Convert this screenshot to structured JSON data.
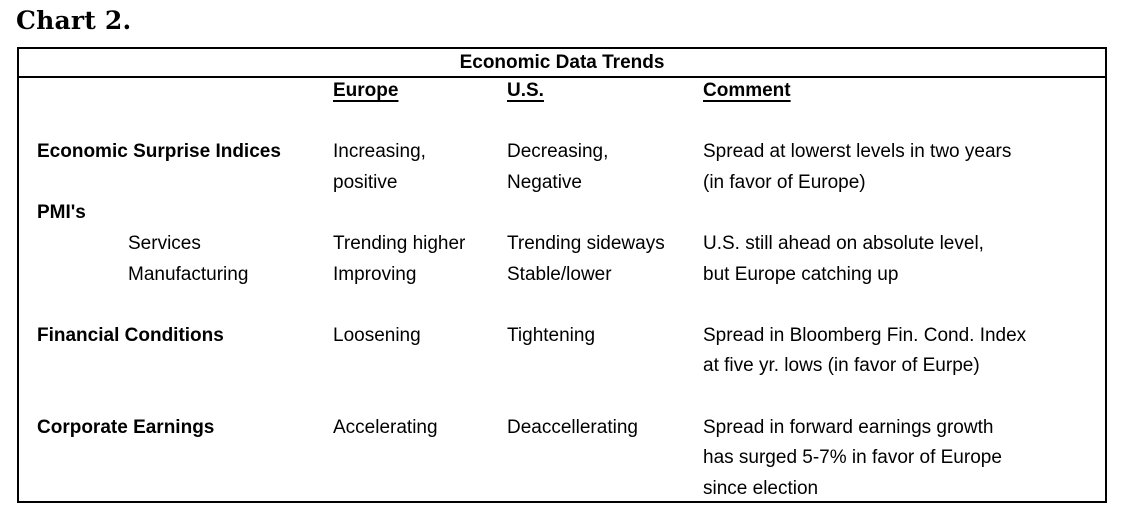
{
  "page": {
    "caption": "Chart 2."
  },
  "colors": {
    "text": "#000000",
    "border": "#000000",
    "background": "#ffffff"
  },
  "chart_data": {
    "type": "table",
    "title": "Economic Data Trends",
    "columns": {
      "label": "",
      "europe": "Europe",
      "us": "U.S.",
      "comment": "Comment"
    },
    "rows": [
      {
        "label": "Economic Surprise Indices",
        "europe": "Increasing,\npositive",
        "us": "Decreasing,\nNegative",
        "comment": "Spread at lowerst levels in two years\n(in favor of Europe)"
      },
      {
        "label": "PMI's",
        "europe": "",
        "us": "",
        "comment": ""
      },
      {
        "label": "Services",
        "europe": "Trending higher",
        "us": "Trending sideways",
        "comment": "U.S. still ahead on absolute level,"
      },
      {
        "label": "Manufacturing",
        "europe": "Improving",
        "us": "Stable/lower",
        "comment": "but Europe catching up"
      },
      {
        "label": "Financial Conditions",
        "europe": "Loosening",
        "us": "Tightening",
        "comment": "Spread in Bloomberg Fin. Cond. Index\nat five yr. lows (in favor of Eurpe)"
      },
      {
        "label": "Corporate Earnings",
        "europe": "Accelerating",
        "us": "Deaccellerating",
        "comment": "Spread in forward earnings growth\nhas surged 5-7% in favor of Europe\nsince election"
      }
    ]
  }
}
